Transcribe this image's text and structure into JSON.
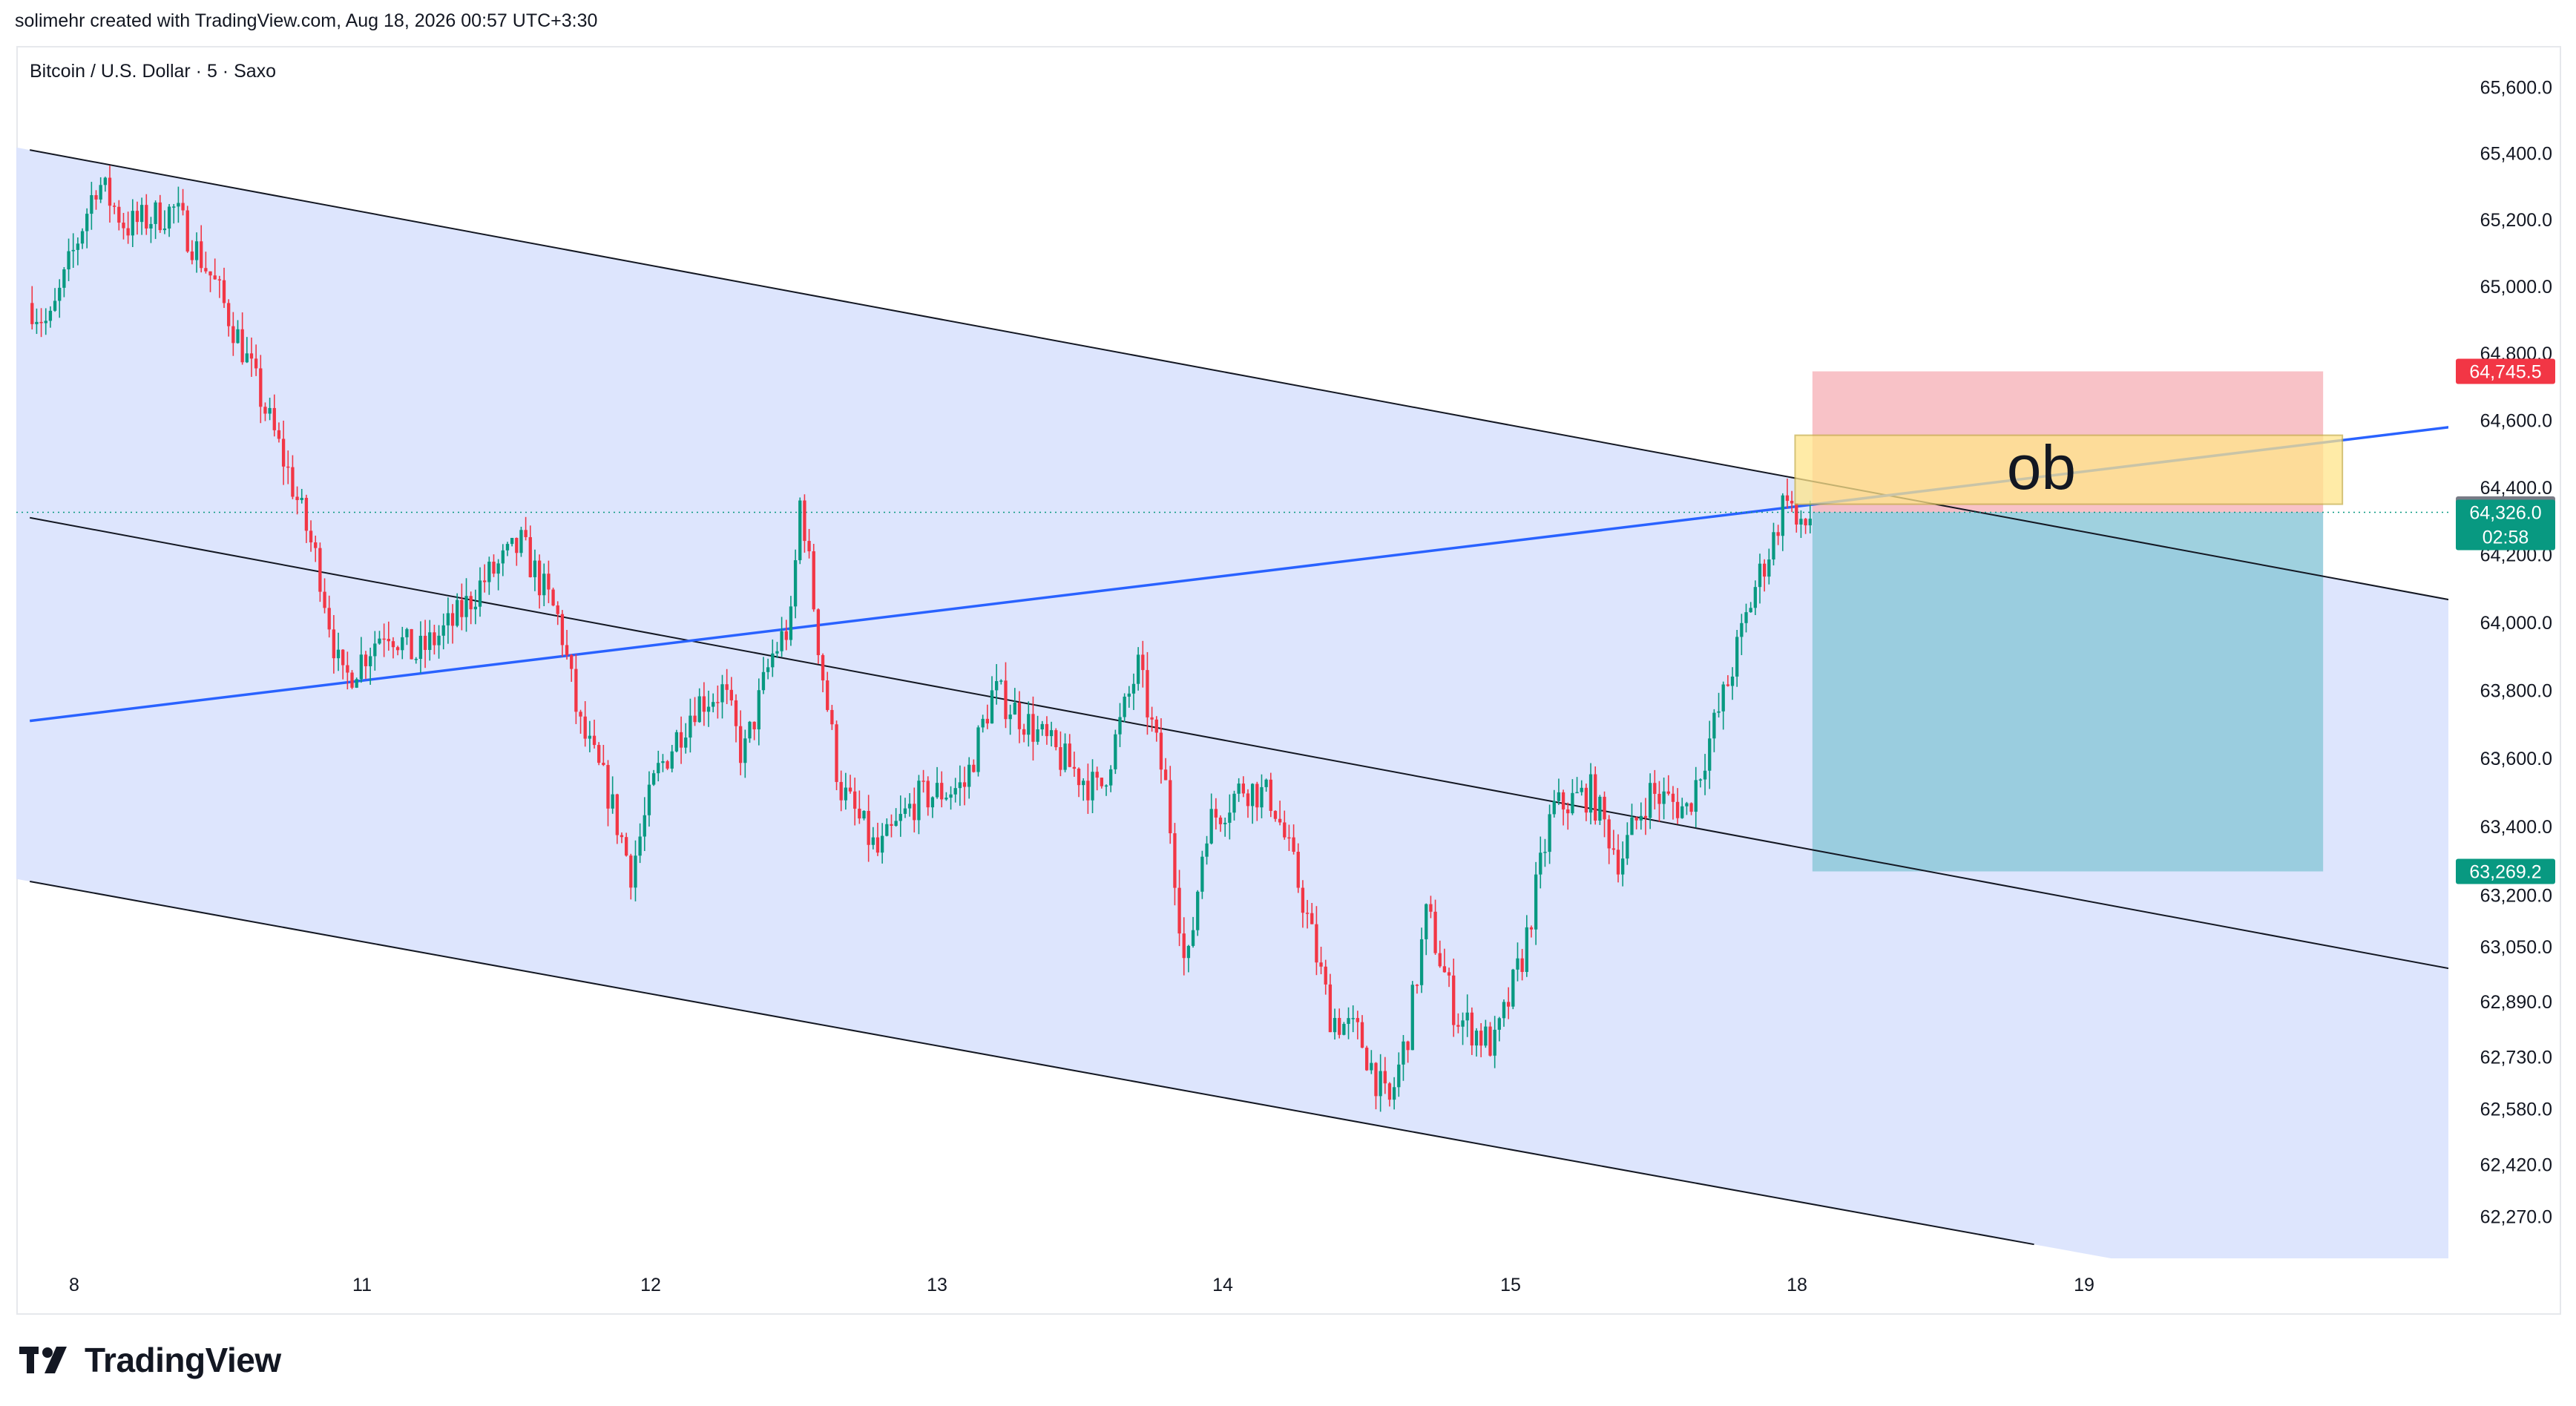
{
  "header": {
    "attribution": "solimehr created with TradingView.com, Aug 18, 2026 00:57 UTC+3:30",
    "symbol_line": "Bitcoin / U.S. Dollar · 5 · Saxo"
  },
  "footer": {
    "brand": "TradingView"
  },
  "colors": {
    "up": "#089981",
    "down": "#f23645",
    "channel_fill": "#dbe4fd",
    "blue_line": "#2962ff",
    "stop_zone": "#f7b7bd",
    "target_zone": "#8ec9d9",
    "ob_zone": "#ffe58a"
  },
  "chart_data": {
    "type": "candlestick",
    "instrument": "Bitcoin / U.S. Dollar",
    "interval": "5",
    "source": "Saxo",
    "x_tick_labels": [
      "8",
      "11",
      "12",
      "13",
      "14",
      "15",
      "18",
      "19"
    ],
    "y_tick_labels": [
      "65,600.0",
      "65,400.0",
      "65,200.0",
      "65,000.0",
      "64,800.0",
      "64,600.0",
      "64,400.0",
      "64,200.0",
      "64,000.0",
      "63,800.0",
      "63,600.0",
      "63,400.0",
      "63,200.0",
      "63,050.0",
      "62,890.0",
      "62,730.0",
      "62,580.0",
      "62,420.0",
      "62,270.0"
    ],
    "y_scale": "log",
    "ylim": [
      62150,
      65720
    ],
    "price_path": [
      {
        "day": 8.0,
        "price": 64950
      },
      {
        "day": 8.1,
        "price": 64880
      },
      {
        "day": 8.35,
        "price": 65320
      },
      {
        "day": 8.5,
        "price": 65180
      },
      {
        "day": 8.75,
        "price": 65230
      },
      {
        "day": 8.95,
        "price": 65020
      },
      {
        "day": 9.1,
        "price": 64820
      },
      {
        "day": 9.35,
        "price": 64430
      },
      {
        "day": 9.5,
        "price": 64160
      },
      {
        "day": 9.62,
        "price": 63820
      },
      {
        "day": 9.85,
        "price": 63990
      },
      {
        "day": 10.0,
        "price": 63900
      },
      {
        "day": 10.2,
        "price": 64000
      },
      {
        "day": 10.35,
        "price": 64120
      },
      {
        "day": 10.55,
        "price": 64230
      },
      {
        "day": 10.75,
        "price": 64000
      },
      {
        "day": 10.85,
        "price": 63700
      },
      {
        "day": 11.0,
        "price": 63500
      },
      {
        "day": 11.12,
        "price": 63270
      },
      {
        "day": 11.25,
        "price": 63550
      },
      {
        "day": 11.45,
        "price": 63760
      },
      {
        "day": 11.6,
        "price": 63800
      },
      {
        "day": 11.7,
        "price": 63600
      },
      {
        "day": 11.85,
        "price": 63900
      },
      {
        "day": 11.95,
        "price": 64000
      },
      {
        "day": 12.0,
        "price": 64380
      },
      {
        "day": 12.1,
        "price": 63900
      },
      {
        "day": 12.2,
        "price": 63520
      },
      {
        "day": 12.4,
        "price": 63320
      },
      {
        "day": 12.6,
        "price": 63480
      },
      {
        "day": 12.85,
        "price": 63520
      },
      {
        "day": 13.0,
        "price": 63800
      },
      {
        "day": 13.15,
        "price": 63720
      },
      {
        "day": 13.35,
        "price": 63600
      },
      {
        "day": 13.55,
        "price": 63500
      },
      {
        "day": 13.75,
        "price": 63870
      },
      {
        "day": 13.9,
        "price": 63500
      },
      {
        "day": 14.0,
        "price": 62950
      },
      {
        "day": 14.1,
        "price": 63400
      },
      {
        "day": 14.3,
        "price": 63520
      },
      {
        "day": 14.45,
        "price": 63480
      },
      {
        "day": 14.6,
        "price": 63200
      },
      {
        "day": 14.75,
        "price": 62850
      },
      {
        "day": 14.9,
        "price": 62790
      },
      {
        "day": 15.05,
        "price": 62580
      },
      {
        "day": 15.15,
        "price": 62800
      },
      {
        "day": 15.25,
        "price": 63150
      },
      {
        "day": 15.4,
        "price": 62850
      },
      {
        "day": 15.6,
        "price": 62760
      },
      {
        "day": 15.75,
        "price": 63030
      },
      {
        "day": 15.9,
        "price": 63450
      },
      {
        "day": 16.1,
        "price": 63500
      },
      {
        "day": 16.25,
        "price": 63300
      },
      {
        "day": 16.4,
        "price": 63500
      },
      {
        "day": 16.6,
        "price": 63450
      },
      {
        "day": 16.8,
        "price": 63800
      },
      {
        "day": 16.95,
        "price": 64100
      },
      {
        "day": 17.05,
        "price": 64250
      },
      {
        "day": 17.12,
        "price": 64400
      },
      {
        "day": 17.18,
        "price": 64250
      },
      {
        "day": 17.25,
        "price": 64326
      }
    ],
    "candle_count": 390,
    "lines": [
      {
        "name": "channel-upper",
        "from": {
          "day": 8.0,
          "price": 65410
        },
        "to": {
          "day": 21.0,
          "price": 64020
        }
      },
      {
        "name": "channel-middle",
        "from": {
          "day": 8.0,
          "price": 64310
        },
        "to": {
          "day": 21.0,
          "price": 62940
        }
      },
      {
        "name": "channel-lower",
        "from": {
          "day": 8.0,
          "price": 63240
        },
        "to": {
          "day": 18.4,
          "price": 62190
        }
      },
      {
        "name": "blue-trendline",
        "from": {
          "day": 8.0,
          "price": 63710
        },
        "to": {
          "day": 21.0,
          "price": 64610
        }
      }
    ],
    "zones": [
      {
        "name": "stop-zone",
        "price_top": 64745.5,
        "price_bottom": 64326.0,
        "day_from": 17.25,
        "day_to": 19.9
      },
      {
        "name": "target-zone",
        "price_top": 64326.0,
        "price_bottom": 63269.2,
        "day_from": 17.25,
        "day_to": 19.9
      },
      {
        "name": "ob-zone",
        "price_top": 64555,
        "price_bottom": 64350,
        "day_from": 17.16,
        "day_to": 20.0,
        "label": "ob"
      }
    ],
    "last_price_line": 64326.0,
    "price_badges": [
      {
        "name": "stop-price-badge",
        "value": "64,745.5",
        "price": 64745.5,
        "color": "#f23645"
      },
      {
        "name": "entry-price-badge",
        "value": "64,335.9",
        "price": 64335.9,
        "color": "#787b86"
      },
      {
        "name": "last-price-badge",
        "value": "64,326.0",
        "timer": "02:58",
        "price": 64326.0,
        "color": "#089981"
      },
      {
        "name": "target-price-badge",
        "value": "63,269.2",
        "price": 63269.2,
        "color": "#089981"
      }
    ]
  }
}
